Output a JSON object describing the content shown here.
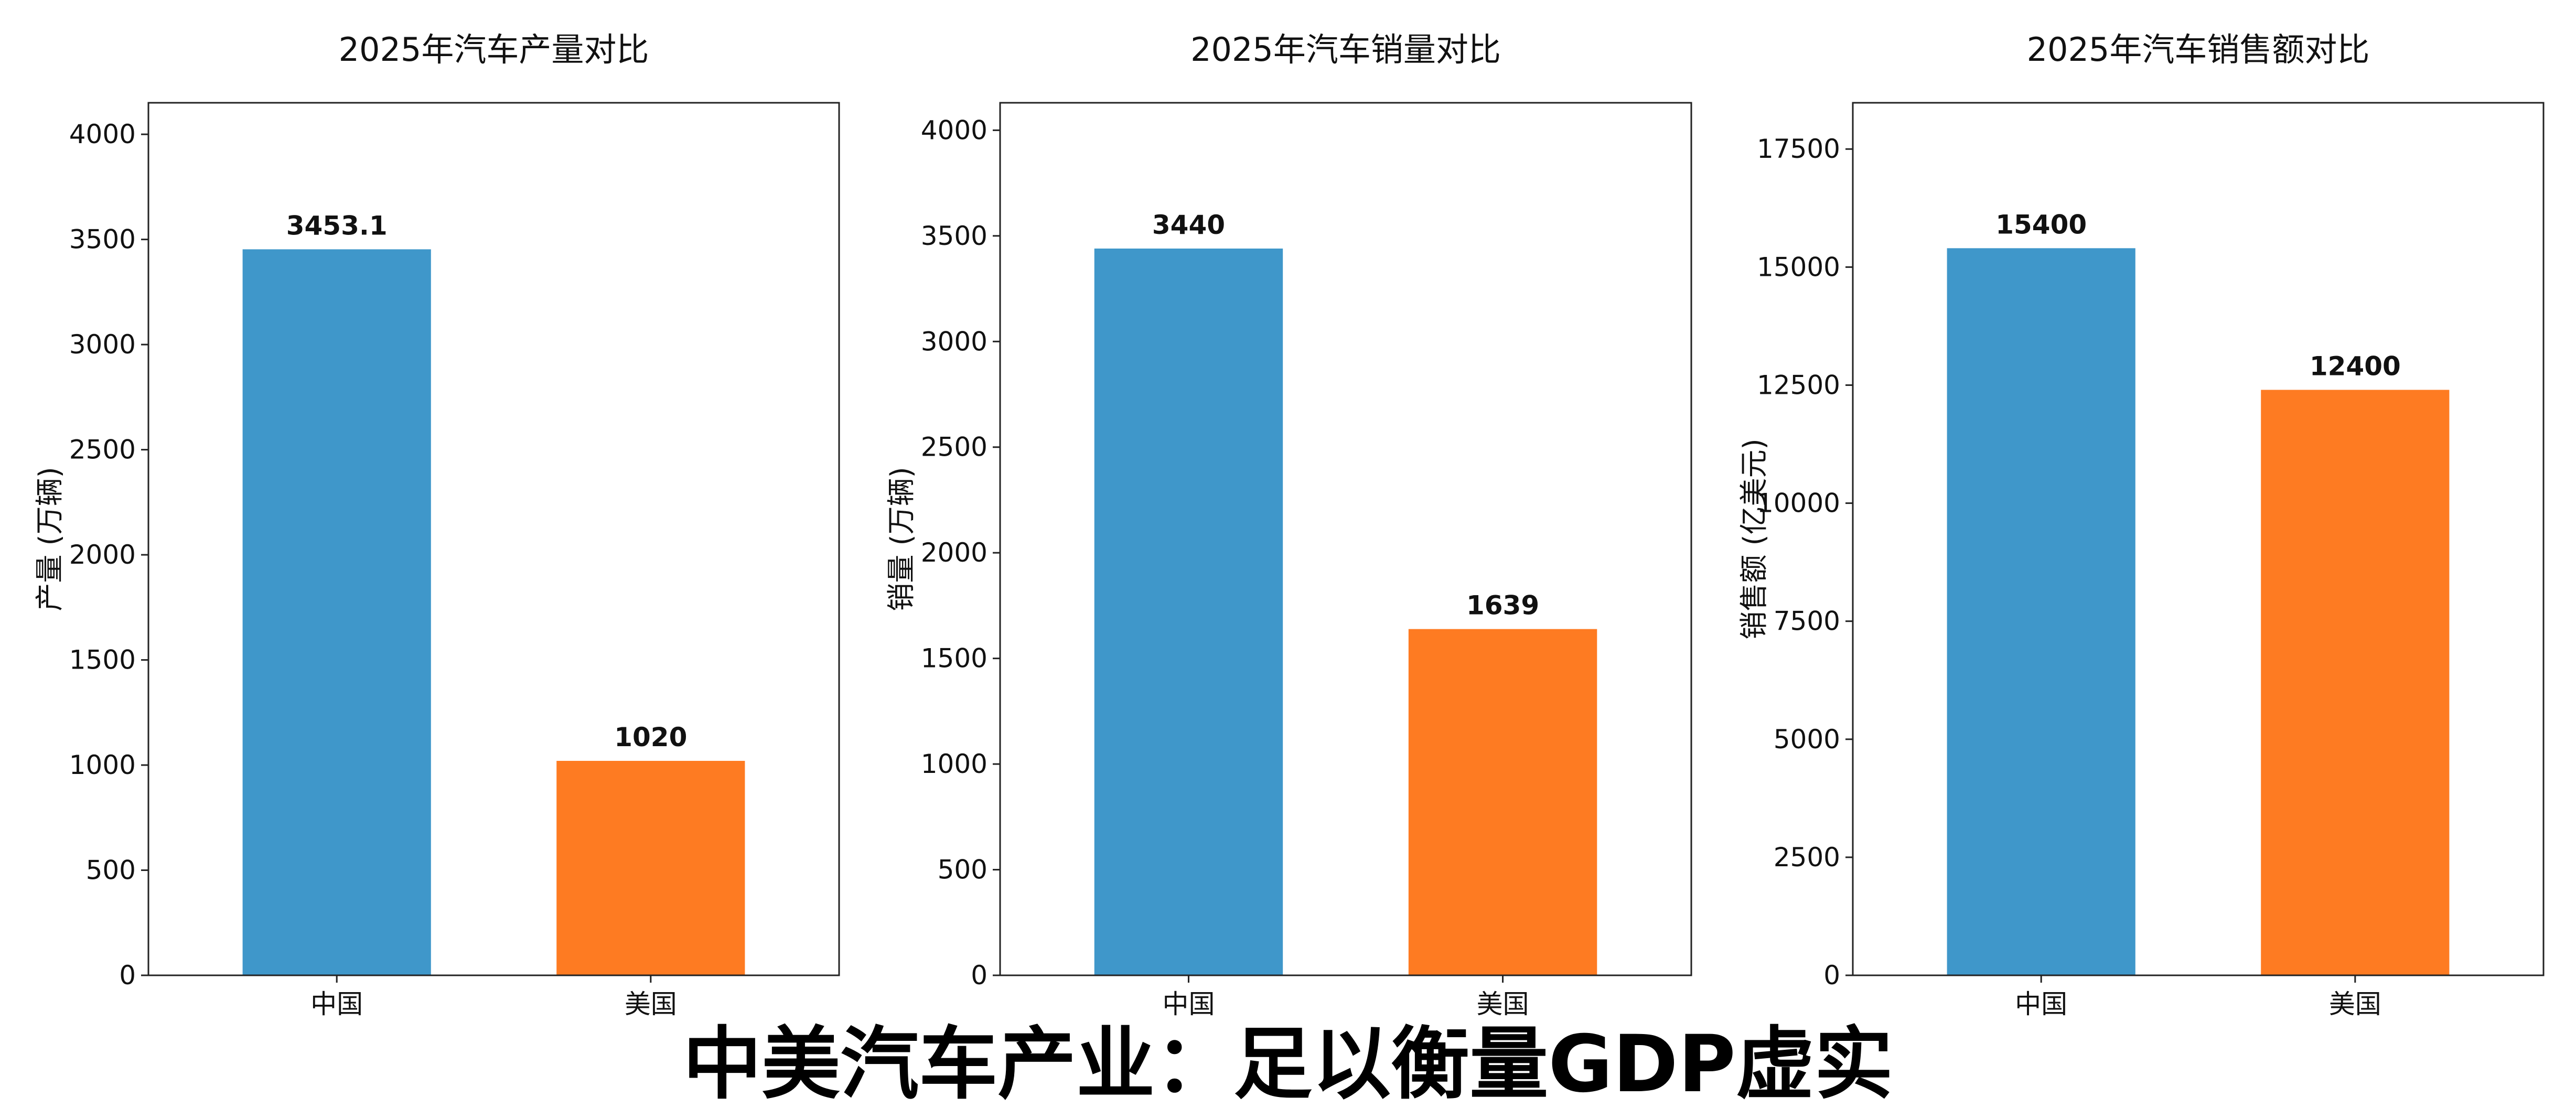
{
  "headline": "中美汽车产业：足以衡量GDP虚实",
  "chart_data": [
    {
      "type": "bar",
      "title": "2025年汽车产量对比",
      "xlabel": "",
      "ylabel": "产量 (万辆)",
      "categories": [
        "中国",
        "美国"
      ],
      "values": [
        3453.1,
        1020
      ],
      "value_labels": [
        "3453.1",
        "1020"
      ],
      "colors": [
        "#3f97ca",
        "#fe7b22"
      ],
      "ylim": [
        0,
        4150
      ],
      "yticks": [
        0,
        500,
        1000,
        1500,
        2000,
        2500,
        3000,
        3500,
        4000
      ],
      "ytick_labels": [
        "0",
        "500",
        "1000",
        "1500",
        "2000",
        "2500",
        "3000",
        "3500",
        "4000"
      ],
      "grid": false,
      "legend": "none"
    },
    {
      "type": "bar",
      "title": "2025年汽车销量对比",
      "xlabel": "",
      "ylabel": "销量 (万辆)",
      "categories": [
        "中国",
        "美国"
      ],
      "values": [
        3440,
        1639
      ],
      "value_labels": [
        "3440",
        "1639"
      ],
      "colors": [
        "#3f97ca",
        "#fe7b22"
      ],
      "ylim": [
        0,
        4130
      ],
      "yticks": [
        0,
        500,
        1000,
        1500,
        2000,
        2500,
        3000,
        3500,
        4000
      ],
      "ytick_labels": [
        "0",
        "500",
        "1000",
        "1500",
        "2000",
        "2500",
        "3000",
        "3500",
        "4000"
      ],
      "grid": false,
      "legend": "none"
    },
    {
      "type": "bar",
      "title": "2025年汽车销售额对比",
      "xlabel": "",
      "ylabel": "销售额 (亿美元)",
      "categories": [
        "中国",
        "美国"
      ],
      "values": [
        15400,
        12400
      ],
      "value_labels": [
        "15400",
        "12400"
      ],
      "colors": [
        "#3f97ca",
        "#fe7b22"
      ],
      "ylim": [
        0,
        18480
      ],
      "yticks": [
        0,
        2500,
        5000,
        7500,
        10000,
        12500,
        15000,
        17500
      ],
      "ytick_labels": [
        "0",
        "2500",
        "5000",
        "7500",
        "10000",
        "12500",
        "15000",
        "17500"
      ],
      "grid": false,
      "legend": "none"
    }
  ]
}
